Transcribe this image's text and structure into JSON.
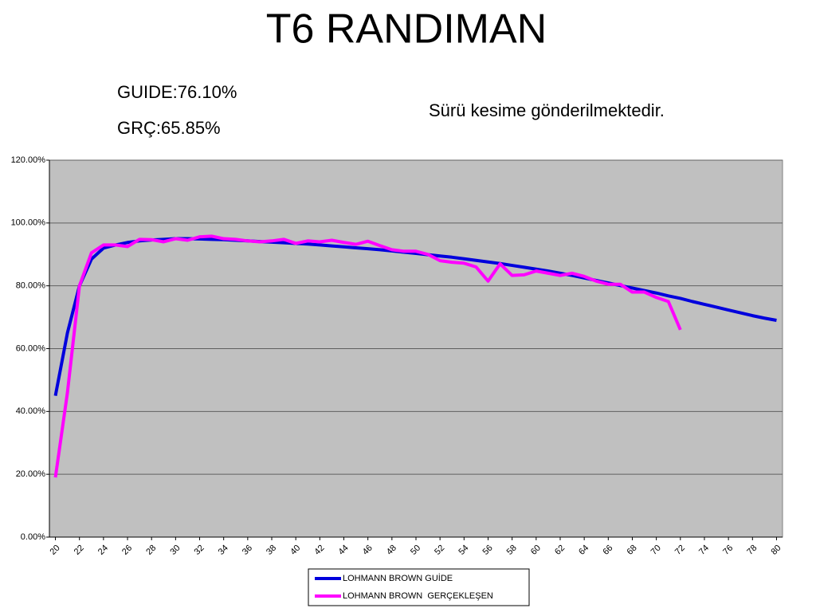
{
  "chart_data": {
    "type": "line",
    "title": "T6 RANDIMAN",
    "annotations": [
      "GUIDE:76.10%",
      "GRÇ:65.85%",
      "Sürü kesime gönderilmektedir."
    ],
    "x": [
      20,
      21,
      22,
      23,
      24,
      25,
      26,
      27,
      28,
      29,
      30,
      31,
      32,
      33,
      34,
      35,
      36,
      37,
      38,
      39,
      40,
      41,
      42,
      43,
      44,
      45,
      46,
      47,
      48,
      49,
      50,
      51,
      52,
      53,
      54,
      55,
      56,
      57,
      58,
      59,
      60,
      61,
      62,
      63,
      64,
      65,
      66,
      67,
      68,
      69,
      70,
      71,
      72,
      73,
      74,
      75,
      76,
      77,
      78,
      79,
      80
    ],
    "xlim": [
      19.5,
      80.5
    ],
    "xticks": [
      20,
      22,
      24,
      26,
      28,
      30,
      32,
      34,
      36,
      38,
      40,
      42,
      44,
      46,
      48,
      50,
      52,
      54,
      56,
      58,
      60,
      62,
      64,
      66,
      68,
      70,
      72,
      74,
      76,
      78,
      80
    ],
    "ylim": [
      0,
      120
    ],
    "yticks": [
      {
        "value": 0,
        "label": "0.00%"
      },
      {
        "value": 20,
        "label": "20.00%"
      },
      {
        "value": 40,
        "label": "40.00%"
      },
      {
        "value": 60,
        "label": "60.00%"
      },
      {
        "value": 80,
        "label": "80.00%"
      },
      {
        "value": 100,
        "label": "100.00%"
      },
      {
        "value": 120,
        "label": "120.00%"
      }
    ],
    "grid": true,
    "plot_background": "#c0c0c0",
    "legend": "bottom",
    "series": [
      {
        "name": "LOHMANN BROWN GUİDE",
        "color": "#0000dd",
        "values": [
          45,
          65,
          80,
          88.5,
          92,
          93,
          93.8,
          94.3,
          94.6,
          94.8,
          95,
          95,
          94.9,
          94.8,
          94.7,
          94.5,
          94.3,
          94.1,
          93.9,
          93.7,
          93.5,
          93.3,
          93,
          92.7,
          92.4,
          92.1,
          91.8,
          91.5,
          91.1,
          90.7,
          90.3,
          89.9,
          89.5,
          89.1,
          88.6,
          88.1,
          87.6,
          87.1,
          86.5,
          85.9,
          85.3,
          84.7,
          84,
          83.3,
          82.5,
          81.7,
          80.9,
          80.1,
          79.3,
          78.5,
          77.7,
          76.8,
          76,
          75,
          74.1,
          73.2,
          72.3,
          71.4,
          70.5,
          69.7,
          69
        ]
      },
      {
        "name": "LOHMANN BROWN  GERÇEKLEŞEN",
        "color": "#ff00ff",
        "values": [
          19,
          46,
          80,
          90.5,
          93,
          93,
          92.5,
          94.8,
          94.7,
          94,
          95,
          94.5,
          95.6,
          95.8,
          95,
          94.8,
          94.3,
          94,
          94.3,
          94.8,
          93.5,
          94.3,
          94,
          94.5,
          93.8,
          93.2,
          94.2,
          92.8,
          91.5,
          91,
          91,
          90,
          88,
          87.5,
          87.2,
          86,
          81.5,
          87,
          83.3,
          83.5,
          84.7,
          84,
          83.3,
          84,
          83,
          81.5,
          80.5,
          80.5,
          78,
          78,
          76.3,
          75,
          66,
          null,
          null,
          null,
          null,
          null,
          null,
          null,
          null
        ]
      }
    ]
  }
}
